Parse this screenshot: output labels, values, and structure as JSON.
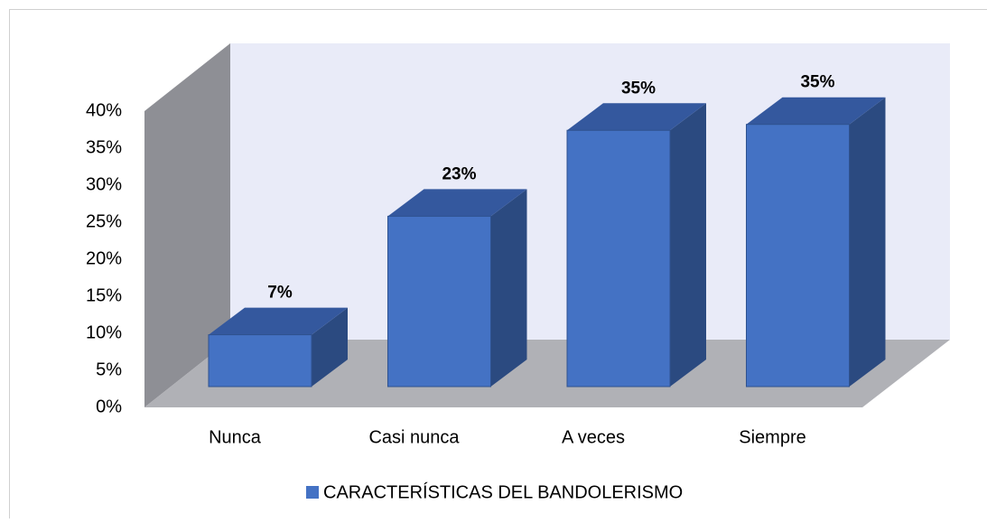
{
  "chart_data": {
    "type": "bar3d",
    "categories": [
      "Nunca",
      "Casi nunca",
      "A veces",
      "Siempre"
    ],
    "series": [
      {
        "name": "CARACTERÍSTICAS DEL BANDOLERISMO",
        "color": "#4472c4",
        "values": [
          7,
          23,
          34.6,
          35.4
        ],
        "value_labels": [
          "7%",
          "23%",
          "35%",
          "35%"
        ]
      }
    ],
    "ylim": [
      0,
      40
    ],
    "yticks": [
      {
        "value": 0,
        "label": "0%"
      },
      {
        "value": 5,
        "label": "5%"
      },
      {
        "value": 10,
        "label": "10%"
      },
      {
        "value": 15,
        "label": "15%"
      },
      {
        "value": 20,
        "label": "20%"
      },
      {
        "value": 25,
        "label": "25%"
      },
      {
        "value": 30,
        "label": "30%"
      },
      {
        "value": 35,
        "label": "35%"
      },
      {
        "value": 40,
        "label": "40%"
      }
    ],
    "legend": "bottom"
  }
}
